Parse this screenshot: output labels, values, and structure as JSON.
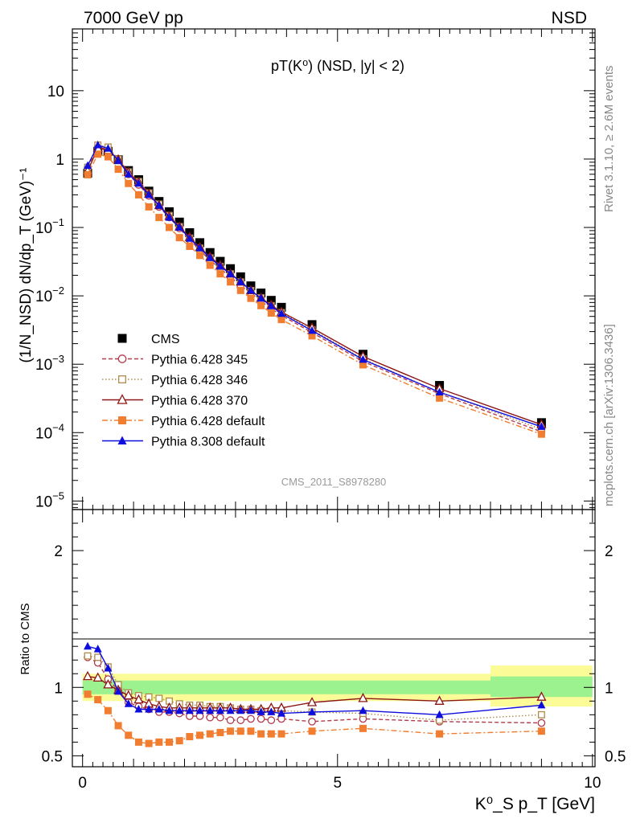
{
  "header": {
    "left": "7000 GeV pp",
    "right": "NSD"
  },
  "side_text": {
    "rivet": "Rivet 3.1.10, ≥ 2.6M events",
    "site": "mcplots.cern.ch [arXiv:1306.3436]"
  },
  "analysis_id": "CMS_2011_S8978280",
  "chart_data": [
    {
      "type": "line",
      "title": "pT(K⁰) (NSD, |y| < 2)",
      "xlabel": "K⁰_S p_T [GeV]",
      "ylabel": "(1/N_NSD) dN/dp_T (GeV)⁻¹",
      "ylog": true,
      "xlim": [
        -0.2,
        10.05
      ],
      "ylim": [
        7.5e-06,
        80
      ],
      "y_tick_labels": [
        "10",
        "1",
        "10⁻¹",
        "10⁻²",
        "10⁻³",
        "10⁻⁴",
        "10⁻⁵"
      ],
      "legend_position": "center-left",
      "x": [
        0.1,
        0.3,
        0.5,
        0.7,
        0.9,
        1.1,
        1.3,
        1.5,
        1.7,
        1.9,
        2.1,
        2.3,
        2.5,
        2.7,
        2.9,
        3.1,
        3.3,
        3.5,
        3.7,
        3.9,
        4.5,
        5.5,
        7.0,
        9.0
      ],
      "series": [
        {
          "name": "CMS",
          "color": "#000000",
          "marker": "square",
          "values": [
            0.62,
            1.3,
            1.3,
            0.98,
            0.68,
            0.5,
            0.34,
            0.24,
            0.17,
            0.12,
            0.084,
            0.06,
            0.043,
            0.032,
            0.025,
            0.019,
            0.014,
            0.011,
            0.0086,
            0.0068,
            0.0038,
            0.0014,
            0.00049,
            0.00014
          ]
        },
        {
          "name": "Pythia 6.428 345",
          "color": "#b03c4c",
          "marker": "circle-open",
          "line": "dashed",
          "values": [
            0.76,
            1.5,
            1.38,
            0.96,
            0.6,
            0.42,
            0.29,
            0.2,
            0.14,
            0.097,
            0.066,
            0.047,
            0.033,
            0.025,
            0.019,
            0.014,
            0.011,
            0.0084,
            0.0065,
            0.0052,
            0.0029,
            0.0011,
            0.00037,
            0.000103
          ]
        },
        {
          "name": "Pythia 6.428 346",
          "color": "#b08a4c",
          "marker": "square-open",
          "line": "dotted",
          "values": [
            0.76,
            1.6,
            1.5,
            1.0,
            0.65,
            0.47,
            0.32,
            0.22,
            0.15,
            0.103,
            0.07,
            0.05,
            0.036,
            0.027,
            0.021,
            0.016,
            0.012,
            0.0094,
            0.0072,
            0.0057,
            0.0032,
            0.0012,
            0.00039,
            0.000112
          ]
        },
        {
          "name": "Pythia 6.428 370",
          "color": "#8c1515",
          "marker": "triangle-open",
          "line": "solid",
          "values": [
            0.67,
            1.45,
            1.35,
            0.98,
            0.64,
            0.46,
            0.31,
            0.21,
            0.146,
            0.102,
            0.072,
            0.051,
            0.037,
            0.028,
            0.021,
            0.016,
            0.012,
            0.0093,
            0.0073,
            0.0058,
            0.0034,
            0.0013,
            0.00044,
            0.000131
          ]
        },
        {
          "name": "Pythia 6.428 default",
          "color": "#f07d30",
          "marker": "square-filled",
          "line": "dashdot",
          "values": [
            0.59,
            1.18,
            1.08,
            0.71,
            0.44,
            0.3,
            0.2,
            0.14,
            0.1,
            0.071,
            0.053,
            0.039,
            0.028,
            0.021,
            0.016,
            0.012,
            0.0092,
            0.0072,
            0.0056,
            0.0045,
            0.0026,
            0.00098,
            0.00032,
            9.5e-05
          ]
        },
        {
          "name": "Pythia 8.308 default",
          "color": "#0d0ddd",
          "marker": "triangle-filled",
          "line": "solid",
          "values": [
            0.8,
            1.6,
            1.43,
            0.95,
            0.6,
            0.44,
            0.3,
            0.21,
            0.14,
            0.1,
            0.069,
            0.05,
            0.036,
            0.027,
            0.021,
            0.016,
            0.012,
            0.0092,
            0.0071,
            0.0055,
            0.0031,
            0.00117,
            0.00039,
            0.000122
          ]
        }
      ]
    },
    {
      "type": "line",
      "title": "",
      "xlabel": "K⁰_S p_T [GeV]",
      "ylabel": "Ratio to CMS",
      "xlim": [
        -0.2,
        10.05
      ],
      "ylim": [
        0.42,
        2.3
      ],
      "x_tick_labels": [
        "0",
        "5",
        "10"
      ],
      "y_tick_labels": [
        "2",
        "1",
        "0.5"
      ],
      "reference_line": 1,
      "bands": [
        {
          "x": [
            0.0,
            8.0
          ],
          "inner": [
            0.95,
            1.05
          ],
          "outer": [
            0.9,
            1.1
          ]
        },
        {
          "x": [
            8.0,
            10.0
          ],
          "inner": [
            0.93,
            1.08
          ],
          "outer": [
            0.86,
            1.16
          ]
        }
      ],
      "x": [
        0.1,
        0.3,
        0.5,
        0.7,
        0.9,
        1.1,
        1.3,
        1.5,
        1.7,
        1.9,
        2.1,
        2.3,
        2.5,
        2.7,
        2.9,
        3.1,
        3.3,
        3.5,
        3.7,
        3.9,
        4.5,
        5.5,
        7.0,
        9.0
      ],
      "series": [
        {
          "name": "Pythia 6.428 345",
          "color": "#b03c4c",
          "marker": "circle-open",
          "line": "dashed",
          "values": [
            1.22,
            1.18,
            1.06,
            0.98,
            0.89,
            0.86,
            0.84,
            0.82,
            0.82,
            0.81,
            0.79,
            0.79,
            0.78,
            0.78,
            0.76,
            0.76,
            0.77,
            0.77,
            0.76,
            0.77,
            0.75,
            0.77,
            0.75,
            0.74
          ]
        },
        {
          "name": "Pythia 6.428 346",
          "color": "#b08a4c",
          "marker": "square-open",
          "line": "dotted",
          "values": [
            1.23,
            1.22,
            1.15,
            1.02,
            0.96,
            0.94,
            0.93,
            0.92,
            0.9,
            0.88,
            0.87,
            0.87,
            0.86,
            0.86,
            0.85,
            0.84,
            0.84,
            0.83,
            0.83,
            0.83,
            0.82,
            0.81,
            0.76,
            0.8
          ]
        },
        {
          "name": "Pythia 6.428 370",
          "color": "#8c1515",
          "marker": "triangle-open",
          "line": "solid",
          "values": [
            1.08,
            1.07,
            1.02,
            0.98,
            0.94,
            0.91,
            0.88,
            0.86,
            0.85,
            0.85,
            0.85,
            0.85,
            0.85,
            0.85,
            0.85,
            0.84,
            0.84,
            0.84,
            0.85,
            0.85,
            0.89,
            0.92,
            0.9,
            0.93
          ]
        },
        {
          "name": "Pythia 6.428 default",
          "color": "#f07d30",
          "marker": "square-filled",
          "line": "dashdot",
          "values": [
            0.95,
            0.91,
            0.83,
            0.72,
            0.65,
            0.6,
            0.59,
            0.6,
            0.6,
            0.61,
            0.64,
            0.65,
            0.66,
            0.67,
            0.68,
            0.68,
            0.68,
            0.66,
            0.66,
            0.66,
            0.68,
            0.7,
            0.66,
            0.68
          ]
        },
        {
          "name": "Pythia 8.308 default",
          "color": "#0d0ddd",
          "marker": "triangle-filled",
          "line": "solid",
          "values": [
            1.3,
            1.28,
            1.14,
            0.97,
            0.88,
            0.84,
            0.84,
            0.84,
            0.83,
            0.83,
            0.83,
            0.83,
            0.83,
            0.83,
            0.83,
            0.83,
            0.83,
            0.82,
            0.82,
            0.81,
            0.82,
            0.83,
            0.8,
            0.87
          ]
        }
      ]
    }
  ]
}
